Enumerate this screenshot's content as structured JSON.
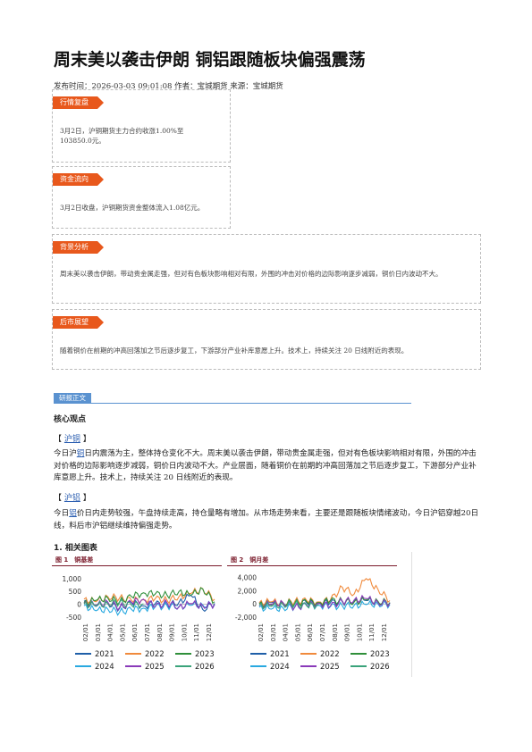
{
  "title": "周末美以袭击伊朗 铜铝跟随板块偏强震荡",
  "meta": "发布时间：2026-03-03 09:01:08 作者：宝城期货 来源：宝城期货",
  "boxes": [
    {
      "tag": "行情复盘",
      "text": "3月2日，沪铜期货主力合约收涨1.00%至103850.0元。"
    },
    {
      "tag": "资金流向",
      "text": "3月2日收盘，沪铜期货资金整体流入1.08亿元。"
    },
    {
      "tag": "背景分析",
      "text": "周末美以袭击伊朗，带动贵金属走强，但对有色板块影响相对有限，外围的冲击对价格的边际影响逐步减弱，铜价日内波动不大。"
    },
    {
      "tag": "后市展望",
      "text": "随着铜价在前期的冲高回落加之节后逐步复工，下游部分产业补库意愿上升。技术上，持续关注 20 日线附近的表现。"
    }
  ],
  "section_tag": "研报正文",
  "core_heading": "核心观点",
  "copper": {
    "bracket_open": "【",
    "link": "沪铜",
    "bracket_close": "】",
    "p_before": "今日沪",
    "p_link": "铜",
    "p_after": "日内震荡为主，整体持仓变化不大。周末美以袭击伊朗，带动贵金属走强，但对有色板块影响相对有限，外围的冲击对价格的边际影响逐步减弱，铜价日内波动不大。产业层面，随着铜价在前期的冲高回落加之节后逐步复工，下游部分产业补库意愿上升。技术上，持续关注 20 日线附近的表现。"
  },
  "aluminum": {
    "bracket_open": "【",
    "link": "沪铝",
    "bracket_close": "】",
    "p_before": "今日",
    "p_link": "铝",
    "p_after": "价日内走势较强，午盘持续走高，持仓量略有增加。从市场走势来看，主要还是跟随板块情绪波动，今日沪铝穿越20日线，料后市沪铝继续维持偏强走势。"
  },
  "fig_heading": "1. 相关图表",
  "colors": {
    "2021": "#1f5fa8",
    "2022": "#f08a3c",
    "2023": "#2f8f3a",
    "2024": "#29a9e0",
    "2025": "#8a3ab9",
    "2026": "#3aa37a"
  },
  "chart_data": [
    {
      "type": "line",
      "title": "图 1　铜基差",
      "yticks": [
        "1,000",
        "500",
        "0",
        "-500"
      ],
      "ytick_values": [
        1000,
        500,
        0,
        -500
      ],
      "ylim": [
        -600,
        1200
      ],
      "xticks": [
        "02/01",
        "03/01",
        "04/01",
        "05/01",
        "06/01",
        "07/01",
        "08/01",
        "09/01",
        "10/01",
        "11/01",
        "12/01"
      ],
      "series": [
        {
          "name": "2021",
          "values": [
            120,
            -80,
            40,
            -150,
            60,
            -60,
            30,
            -40,
            80,
            350,
            -200,
            40
          ]
        },
        {
          "name": "2022",
          "values": [
            200,
            100,
            300,
            250,
            150,
            180,
            220,
            150,
            300,
            420,
            600,
            200
          ]
        },
        {
          "name": "2023",
          "values": [
            60,
            150,
            250,
            100,
            300,
            450,
            400,
            350,
            500,
            350,
            600,
            100
          ]
        },
        {
          "name": "2024",
          "values": [
            -50,
            -250,
            -180,
            -300,
            -200,
            -150,
            -100,
            -60,
            -80,
            -40,
            -20,
            -10
          ]
        },
        {
          "name": "2025",
          "values": [
            40,
            -40,
            100,
            -120,
            80,
            200,
            -80,
            60,
            -100,
            30,
            -60,
            0
          ]
        },
        {
          "name": "2026",
          "values": [
            20,
            -60,
            30,
            80,
            -40,
            20
          ]
        }
      ]
    },
    {
      "type": "line",
      "title": "图 2　铜月差",
      "yticks": [
        "4,000",
        "2,000",
        "0",
        "-2,000"
      ],
      "ytick_values": [
        4000,
        2000,
        0,
        -2000
      ],
      "ylim": [
        -2400,
        4600
      ],
      "xticks": [
        "02/01",
        "03/01",
        "04/01",
        "05/01",
        "06/01",
        "07/01",
        "08/01",
        "09/01",
        "10/01",
        "11/01",
        "12/01"
      ],
      "series": [
        {
          "name": "2021",
          "values": [
            100,
            200,
            0,
            300,
            150,
            100,
            200,
            300,
            400,
            500,
            300,
            200
          ]
        },
        {
          "name": "2022",
          "values": [
            200,
            300,
            100,
            400,
            500,
            300,
            600,
            2500,
            1500,
            3800,
            2200,
            500
          ]
        },
        {
          "name": "2023",
          "values": [
            0,
            -200,
            200,
            100,
            300,
            200,
            500,
            400,
            300,
            600,
            400,
            200
          ]
        },
        {
          "name": "2024",
          "values": [
            -500,
            -800,
            -600,
            -400,
            -300,
            -200,
            -400,
            -300,
            -200,
            -100,
            0,
            -100
          ]
        },
        {
          "name": "2025",
          "values": [
            -300,
            -100,
            200,
            -500,
            -200,
            100,
            -300,
            400,
            600,
            800,
            200,
            100
          ]
        },
        {
          "name": "2026",
          "values": [
            -200,
            -400,
            -100,
            0,
            -300,
            -100
          ]
        }
      ]
    }
  ]
}
